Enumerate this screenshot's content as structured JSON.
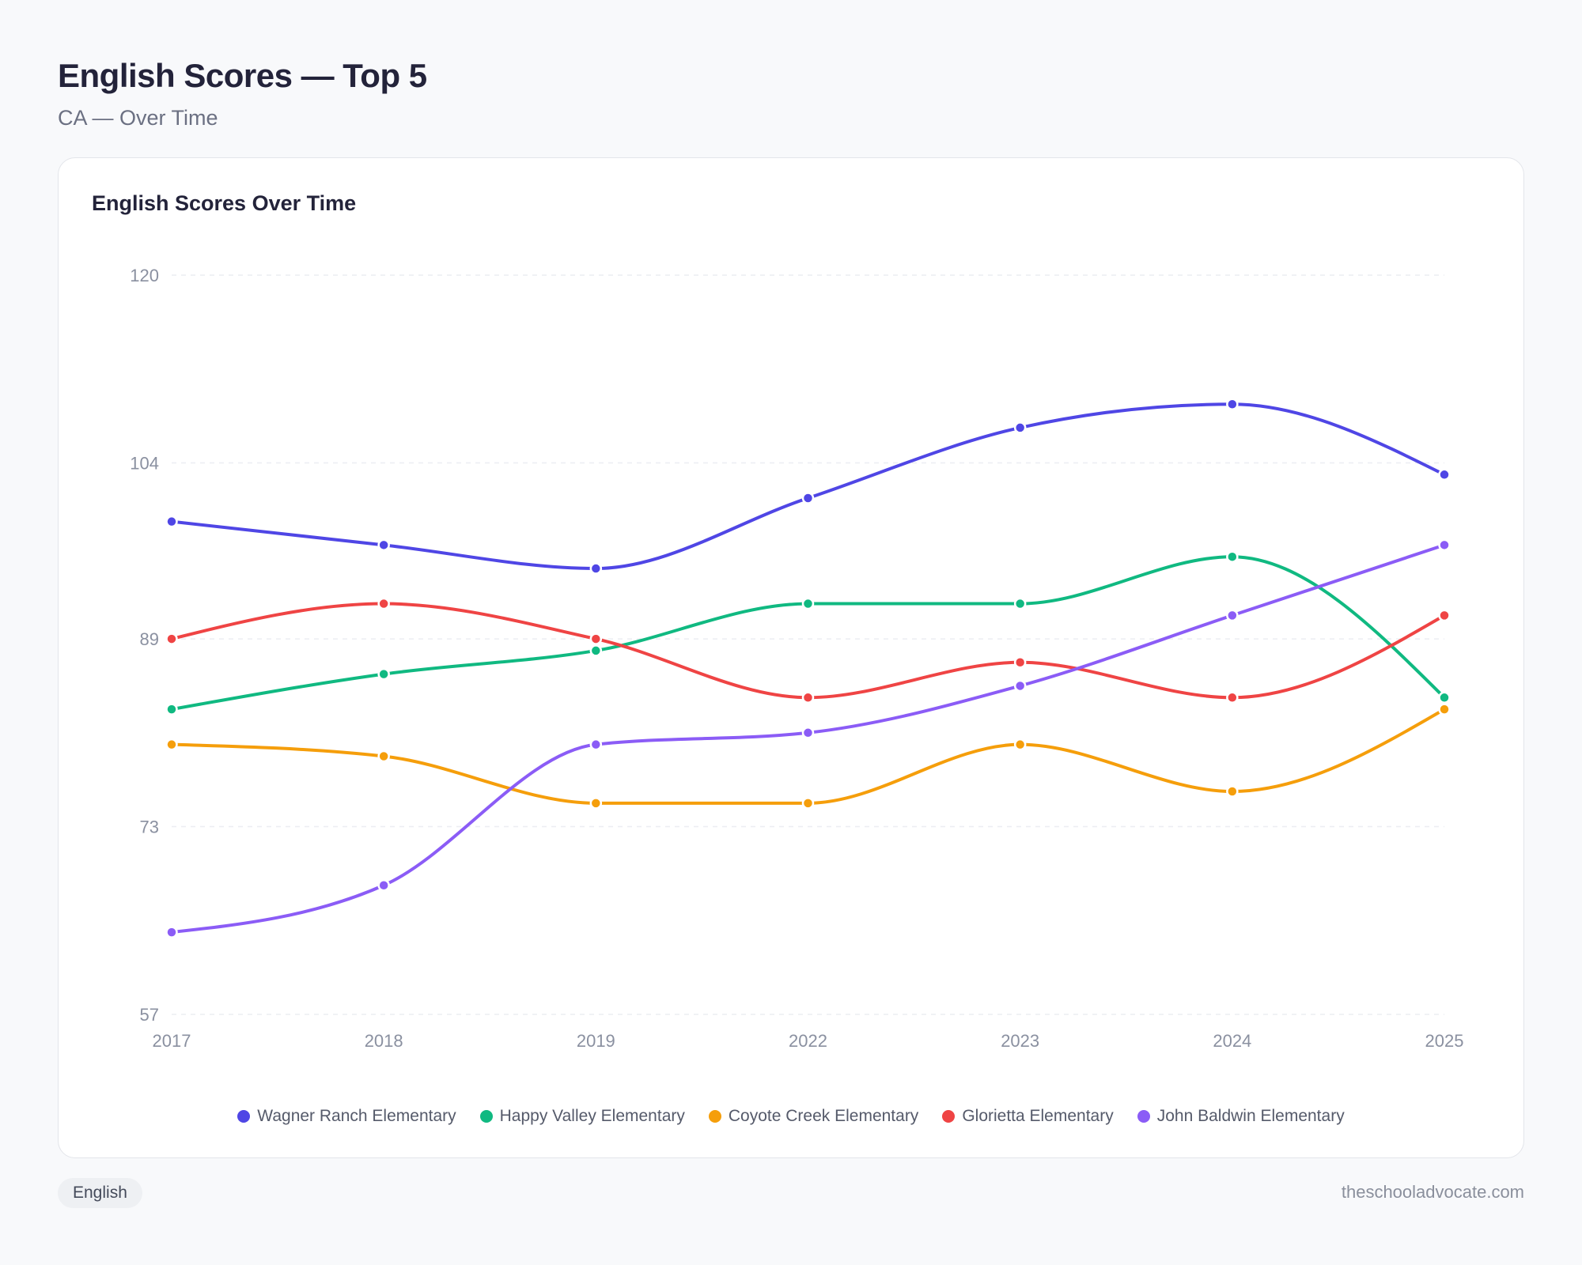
{
  "header": {
    "title": "English Scores — Top 5",
    "subtitle": "CA — Over Time"
  },
  "footer": {
    "tag": "English",
    "site": "theschooladvocate.com"
  },
  "chart_data": {
    "type": "line",
    "title": "English Scores Over Time",
    "categories": [
      "2017",
      "2018",
      "2019",
      "2022",
      "2023",
      "2024",
      "2025"
    ],
    "ylim": [
      57,
      120
    ],
    "yticks": [
      57,
      73,
      89,
      104,
      120
    ],
    "grid": true,
    "legend": "bottom",
    "series": [
      {
        "name": "Wagner Ranch Elementary",
        "color": "#4f46e5",
        "values": [
          99,
          97,
          95,
          101,
          107,
          109,
          103
        ]
      },
      {
        "name": "Happy Valley Elementary",
        "color": "#10b981",
        "values": [
          83,
          86,
          88,
          92,
          92,
          96,
          84
        ]
      },
      {
        "name": "Coyote Creek Elementary",
        "color": "#f59e0b",
        "values": [
          80,
          79,
          75,
          75,
          80,
          76,
          83
        ]
      },
      {
        "name": "Glorietta Elementary",
        "color": "#ef4444",
        "values": [
          89,
          92,
          89,
          84,
          87,
          84,
          91
        ]
      },
      {
        "name": "John Baldwin Elementary",
        "color": "#8b5cf6",
        "values": [
          64,
          68,
          80,
          81,
          85,
          91,
          97
        ]
      }
    ]
  }
}
